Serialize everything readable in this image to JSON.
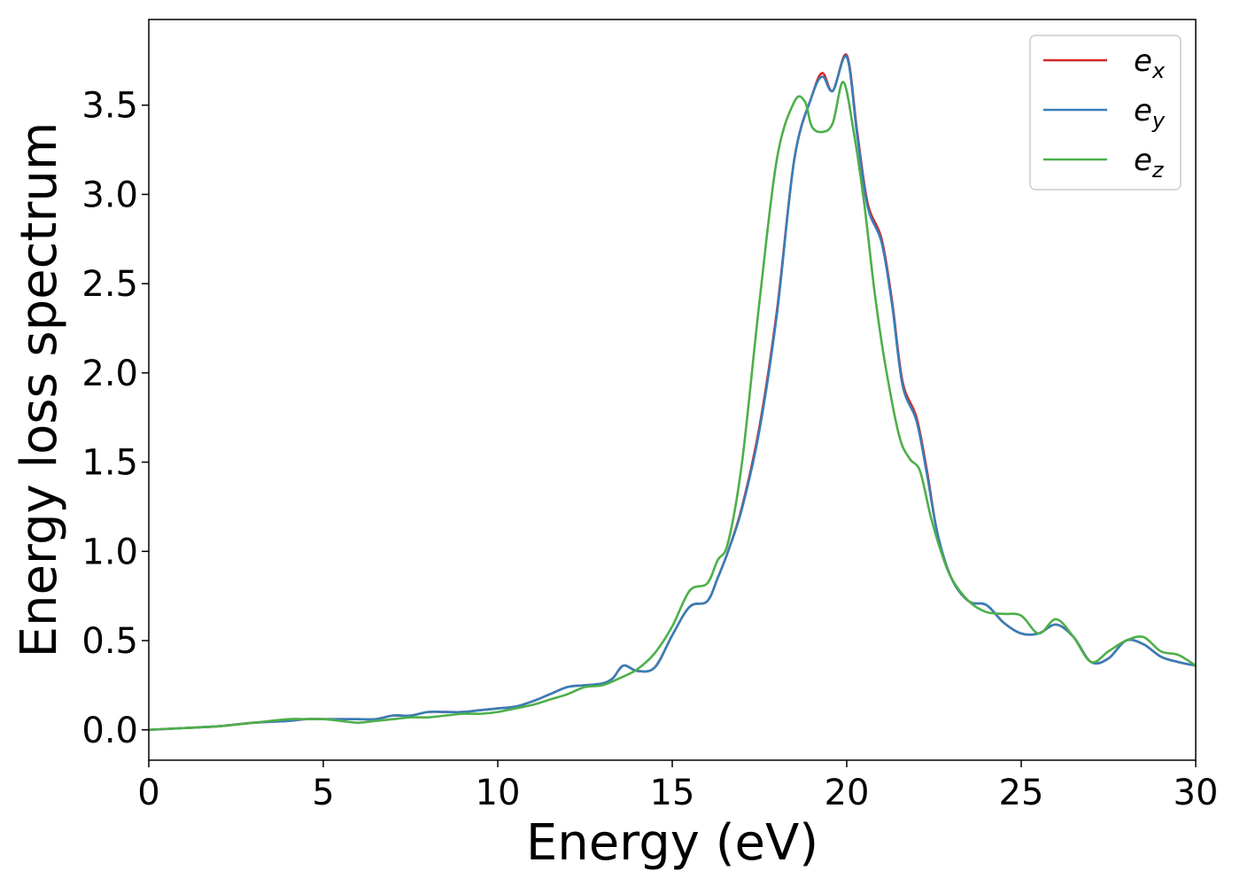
{
  "chart_data": {
    "type": "line",
    "title": "",
    "xlabel": "Energy (eV)",
    "ylabel": "Energy loss spectrum",
    "xlim": [
      0,
      30
    ],
    "ylim": [
      -0.17,
      3.98
    ],
    "xticks": [
      0,
      5,
      10,
      15,
      20,
      25,
      30
    ],
    "xtick_labels": [
      "0",
      "5",
      "10",
      "15",
      "20",
      "25",
      "30"
    ],
    "yticks": [
      0.0,
      0.5,
      1.0,
      1.5,
      2.0,
      2.5,
      3.0,
      3.5
    ],
    "ytick_labels": [
      "0.0",
      "0.5",
      "1.0",
      "1.5",
      "2.0",
      "2.5",
      "3.0",
      "3.5"
    ],
    "grid": false,
    "legend_position": "top-right",
    "series": [
      {
        "name": "e",
        "subscript": "x",
        "color": "#d62728",
        "x": [
          0,
          1,
          2,
          3,
          4,
          4.5,
          5,
          5.5,
          6,
          6.5,
          7,
          7.5,
          8,
          8.5,
          9,
          9.5,
          10,
          10.5,
          11,
          11.5,
          12,
          12.5,
          13,
          13.3,
          13.6,
          14,
          14.5,
          15,
          15.5,
          16,
          16.3,
          16.6,
          17,
          17.5,
          18,
          18.5,
          19,
          19.3,
          19.6,
          20,
          20.3,
          20.6,
          21,
          21.3,
          21.6,
          22,
          22.3,
          22.6,
          23,
          23.5,
          24,
          24.5,
          25,
          25.5,
          26,
          26.5,
          27,
          27.5,
          28,
          28.5,
          29,
          29.5,
          30
        ],
        "y": [
          0.0,
          0.01,
          0.02,
          0.04,
          0.05,
          0.06,
          0.06,
          0.06,
          0.06,
          0.06,
          0.08,
          0.08,
          0.1,
          0.1,
          0.1,
          0.11,
          0.12,
          0.13,
          0.16,
          0.2,
          0.24,
          0.25,
          0.26,
          0.29,
          0.36,
          0.33,
          0.35,
          0.53,
          0.69,
          0.72,
          0.85,
          1.0,
          1.25,
          1.7,
          2.35,
          3.2,
          3.55,
          3.68,
          3.58,
          3.78,
          3.35,
          2.95,
          2.75,
          2.4,
          1.95,
          1.75,
          1.45,
          1.1,
          0.85,
          0.72,
          0.7,
          0.6,
          0.54,
          0.54,
          0.59,
          0.52,
          0.38,
          0.4,
          0.5,
          0.48,
          0.41,
          0.38,
          0.36
        ]
      },
      {
        "name": "e",
        "subscript": "y",
        "color": "#377eb8",
        "x": [
          0,
          1,
          2,
          3,
          4,
          4.5,
          5,
          5.5,
          6,
          6.5,
          7,
          7.5,
          8,
          8.5,
          9,
          9.5,
          10,
          10.5,
          11,
          11.5,
          12,
          12.5,
          13,
          13.3,
          13.6,
          14,
          14.5,
          15,
          15.5,
          16,
          16.3,
          16.6,
          17,
          17.5,
          18,
          18.5,
          19,
          19.3,
          19.6,
          20,
          20.3,
          20.6,
          21,
          21.3,
          21.6,
          22,
          22.3,
          22.6,
          23,
          23.5,
          24,
          24.5,
          25,
          25.5,
          26,
          26.5,
          27,
          27.5,
          28,
          28.5,
          29,
          29.5,
          30
        ],
        "y": [
          0.0,
          0.01,
          0.02,
          0.04,
          0.05,
          0.06,
          0.06,
          0.06,
          0.06,
          0.06,
          0.08,
          0.08,
          0.1,
          0.1,
          0.1,
          0.11,
          0.12,
          0.13,
          0.16,
          0.2,
          0.24,
          0.25,
          0.26,
          0.29,
          0.36,
          0.33,
          0.35,
          0.53,
          0.69,
          0.72,
          0.85,
          1.0,
          1.24,
          1.68,
          2.33,
          3.2,
          3.55,
          3.66,
          3.58,
          3.77,
          3.33,
          2.93,
          2.73,
          2.38,
          1.93,
          1.73,
          1.43,
          1.1,
          0.85,
          0.72,
          0.7,
          0.6,
          0.54,
          0.54,
          0.59,
          0.52,
          0.38,
          0.4,
          0.5,
          0.48,
          0.41,
          0.38,
          0.36
        ]
      },
      {
        "name": "e",
        "subscript": "z",
        "color": "#4daf4a",
        "x": [
          0,
          1,
          2,
          3,
          4,
          4.5,
          5,
          5.5,
          6,
          6.5,
          7,
          7.5,
          8,
          8.5,
          9,
          9.5,
          10,
          10.5,
          11,
          11.5,
          12,
          12.5,
          13,
          13.5,
          14,
          14.5,
          15,
          15.5,
          16,
          16.3,
          16.6,
          17,
          17.5,
          18,
          18.5,
          18.8,
          19,
          19.3,
          19.6,
          19.9,
          20.2,
          20.5,
          20.8,
          21.1,
          21.5,
          21.8,
          22.1,
          22.4,
          22.7,
          23,
          23.5,
          24,
          24.5,
          25,
          25.5,
          26,
          26.5,
          27,
          27.5,
          28,
          28.5,
          29,
          29.5,
          30
        ],
        "y": [
          0.0,
          0.01,
          0.02,
          0.04,
          0.06,
          0.06,
          0.06,
          0.05,
          0.04,
          0.05,
          0.06,
          0.07,
          0.07,
          0.08,
          0.09,
          0.09,
          0.1,
          0.12,
          0.14,
          0.17,
          0.2,
          0.24,
          0.25,
          0.29,
          0.34,
          0.43,
          0.58,
          0.78,
          0.82,
          0.95,
          1.05,
          1.5,
          2.4,
          3.2,
          3.52,
          3.52,
          3.38,
          3.35,
          3.4,
          3.63,
          3.35,
          2.95,
          2.45,
          2.05,
          1.65,
          1.52,
          1.45,
          1.2,
          1.0,
          0.85,
          0.72,
          0.66,
          0.65,
          0.64,
          0.54,
          0.62,
          0.52,
          0.38,
          0.44,
          0.5,
          0.52,
          0.44,
          0.42,
          0.36
        ]
      }
    ]
  }
}
